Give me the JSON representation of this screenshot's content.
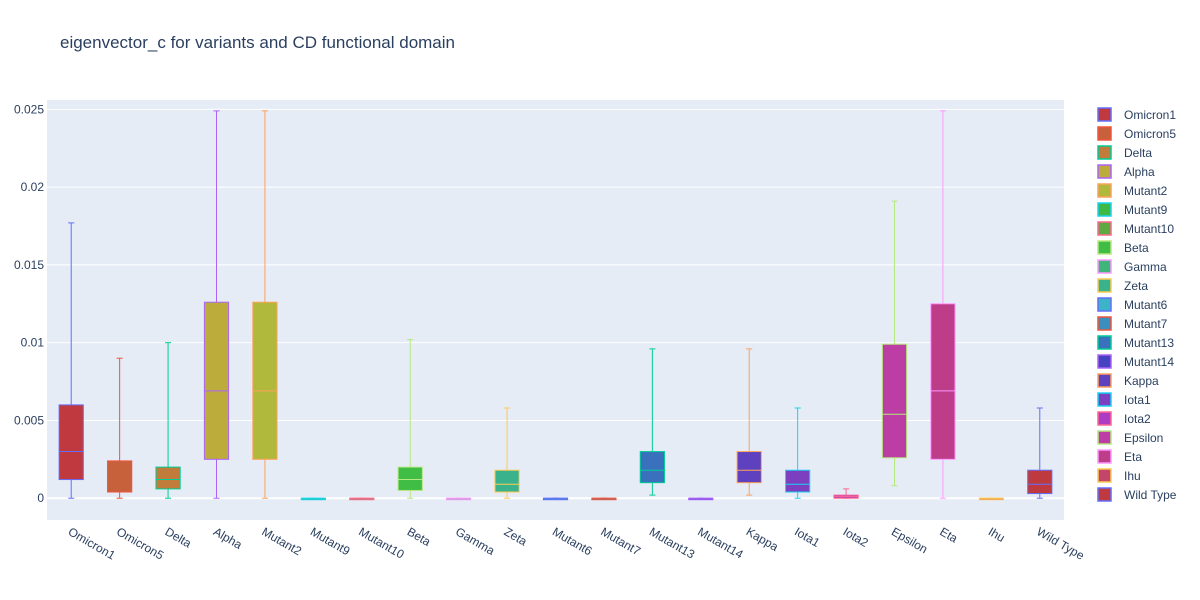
{
  "chart_data": {
    "type": "box",
    "title": "eigenvector_c for variants and CD functional domain",
    "xlabel": "",
    "ylabel": "",
    "ylim": [
      -0.0014,
      0.0256
    ],
    "yticks": [
      "0",
      "0.005",
      "0.01",
      "0.015",
      "0.02",
      "0.025"
    ],
    "ytick_values": [
      0,
      0.005,
      0.01,
      0.015,
      0.02,
      0.025
    ],
    "grid": true,
    "legend_position": "right",
    "categories": [
      "Omicron1",
      "Omicron5",
      "Delta",
      "Alpha",
      "Mutant2",
      "Mutant9",
      "Mutant10",
      "Beta",
      "Gamma",
      "Zeta",
      "Mutant6",
      "Mutant7",
      "Mutant13",
      "Mutant14",
      "Kappa",
      "Iota1",
      "Iota2",
      "Epsilon",
      "Eta",
      "Ihu",
      "Wild Type"
    ],
    "series": [
      {
        "name": "Omicron1",
        "color": "#636efa",
        "fill": "#c0393f",
        "min": 0,
        "q1": 0.0012,
        "median": 0.003,
        "q3": 0.006,
        "max": 0.0177
      },
      {
        "name": "Omicron5",
        "color": "#ef553b",
        "fill": "#c6613c",
        "min": 0,
        "q1": 0.0004,
        "median": 0.0004,
        "q3": 0.0024,
        "max": 0.009
      },
      {
        "name": "Delta",
        "color": "#00cc96",
        "fill": "#c17c3c",
        "min": 0,
        "q1": 0.0006,
        "median": 0.0012,
        "q3": 0.002,
        "max": 0.01
      },
      {
        "name": "Alpha",
        "color": "#ab63fa",
        "fill": "#bcac3c",
        "min": 0,
        "q1": 0.0025,
        "median": 0.0069,
        "q3": 0.0126,
        "max": 0.0249
      },
      {
        "name": "Mutant2",
        "color": "#ffa15a",
        "fill": "#b1b93d",
        "min": 0,
        "q1": 0.0025,
        "median": 0.0069,
        "q3": 0.0126,
        "max": 0.0249
      },
      {
        "name": "Mutant9",
        "color": "#19d3f3",
        "fill": "#3fb945",
        "min": 0,
        "q1": 0,
        "median": 0,
        "q3": 0,
        "max": 0
      },
      {
        "name": "Mutant10",
        "color": "#ff6692",
        "fill": "#5ea941",
        "min": 0,
        "q1": 0,
        "median": 0,
        "q3": 0,
        "max": 0
      },
      {
        "name": "Beta",
        "color": "#b6e880",
        "fill": "#3fbd44",
        "min": 0,
        "q1": 0.0005,
        "median": 0.0012,
        "q3": 0.002,
        "max": 0.0102
      },
      {
        "name": "Gamma",
        "color": "#ff97ff",
        "fill": "#3fb57c",
        "min": 0,
        "q1": 0,
        "median": 0,
        "q3": 0,
        "max": 0
      },
      {
        "name": "Zeta",
        "color": "#fecb52",
        "fill": "#3ab38c",
        "min": 0,
        "q1": 0.0004,
        "median": 0.0009,
        "q3": 0.0018,
        "max": 0.0058
      },
      {
        "name": "Mutant6",
        "color": "#636efa",
        "fill": "#3cb3c6",
        "min": 0,
        "q1": 0,
        "median": 0,
        "q3": 0,
        "max": 0
      },
      {
        "name": "Mutant7",
        "color": "#ef553b",
        "fill": "#3a8fbf",
        "min": 0,
        "q1": 0,
        "median": 0,
        "q3": 0,
        "max": 0
      },
      {
        "name": "Mutant13",
        "color": "#00cc96",
        "fill": "#3a71bd",
        "min": 0.0002,
        "q1": 0.001,
        "median": 0.0018,
        "q3": 0.003,
        "max": 0.0096
      },
      {
        "name": "Mutant14",
        "color": "#ab63fa",
        "fill": "#4543bf",
        "min": 0,
        "q1": 0,
        "median": 0,
        "q3": 0,
        "max": 0
      },
      {
        "name": "Kappa",
        "color": "#ffa15a",
        "fill": "#5d41bf",
        "min": 0.0002,
        "q1": 0.001,
        "median": 0.0018,
        "q3": 0.003,
        "max": 0.0096
      },
      {
        "name": "Iota1",
        "color": "#19d3f3",
        "fill": "#7c3fbf",
        "min": 0,
        "q1": 0.0004,
        "median": 0.0009,
        "q3": 0.0018,
        "max": 0.0058
      },
      {
        "name": "Iota2",
        "color": "#ff6692",
        "fill": "#ad3cc2",
        "min": 0,
        "q1": 0,
        "median": 0.0001,
        "q3": 0.0002,
        "max": 0.0006
      },
      {
        "name": "Epsilon",
        "color": "#b6e880",
        "fill": "#bc3ea5",
        "min": 0.0008,
        "q1": 0.0026,
        "median": 0.0054,
        "q3": 0.0099,
        "max": 0.0191
      },
      {
        "name": "Eta",
        "color": "#ff97ff",
        "fill": "#bd3d89",
        "min": 0,
        "q1": 0.0025,
        "median": 0.0069,
        "q3": 0.0125,
        "max": 0.0249
      },
      {
        "name": "Ihu",
        "color": "#fecb52",
        "fill": "#c2466a",
        "min": 0,
        "q1": 0,
        "median": 0,
        "q3": 0,
        "max": 0
      },
      {
        "name": "Wild Type",
        "color": "#636efa",
        "fill": "#bf3a3f",
        "min": 0,
        "q1": 0.0003,
        "median": 0.0009,
        "q3": 0.0018,
        "max": 0.0058
      }
    ]
  }
}
